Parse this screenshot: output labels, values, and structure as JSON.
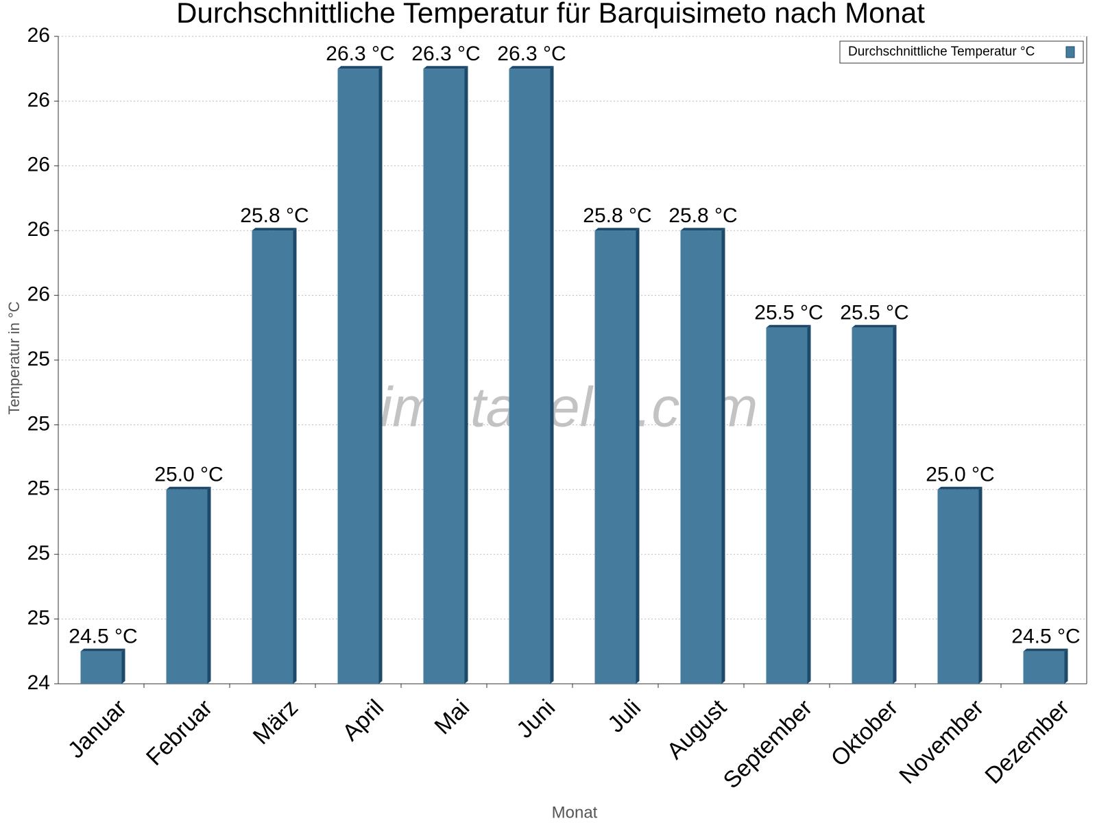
{
  "chart_data": {
    "type": "bar",
    "title": "Durchschnittliche Temperatur für Barquisimeto nach Monat",
    "x_label": "Monat",
    "y_label": "Temperatur in °C",
    "watermark": "klimatabelle.com",
    "categories": [
      "Januar",
      "Februar",
      "März",
      "April",
      "Mai",
      "Juni",
      "Juli",
      "August",
      "September",
      "Oktober",
      "November",
      "Dezember"
    ],
    "series": [
      {
        "name": "Durchschnittliche Temperatur °C",
        "color": "#457b9d",
        "values": [
          24.5,
          25.0,
          25.8,
          26.3,
          26.3,
          26.3,
          25.8,
          25.8,
          25.5,
          25.5,
          25.0,
          24.5
        ],
        "value_labels": [
          "24.5 °C",
          "25.0 °C",
          "25.8 °C",
          "26.3 °C",
          "26.3 °C",
          "26.3 °C",
          "25.8 °C",
          "25.8 °C",
          "25.5 °C",
          "25.5 °C",
          "25.0 °C",
          "24.5 °C"
        ]
      }
    ],
    "ylim": [
      24.4,
      26.4
    ],
    "yticks": [
      {
        "value": 24.4,
        "label": "24"
      },
      {
        "value": 24.6,
        "label": "25"
      },
      {
        "value": 24.8,
        "label": "25"
      },
      {
        "value": 25.0,
        "label": "25"
      },
      {
        "value": 25.2,
        "label": "25"
      },
      {
        "value": 25.4,
        "label": "25"
      },
      {
        "value": 25.6,
        "label": "26"
      },
      {
        "value": 25.8,
        "label": "26"
      },
      {
        "value": 26.0,
        "label": "26"
      },
      {
        "value": 26.2,
        "label": "26"
      },
      {
        "value": 26.4,
        "label": "26"
      }
    ],
    "grid": true,
    "legend": "top-right"
  }
}
